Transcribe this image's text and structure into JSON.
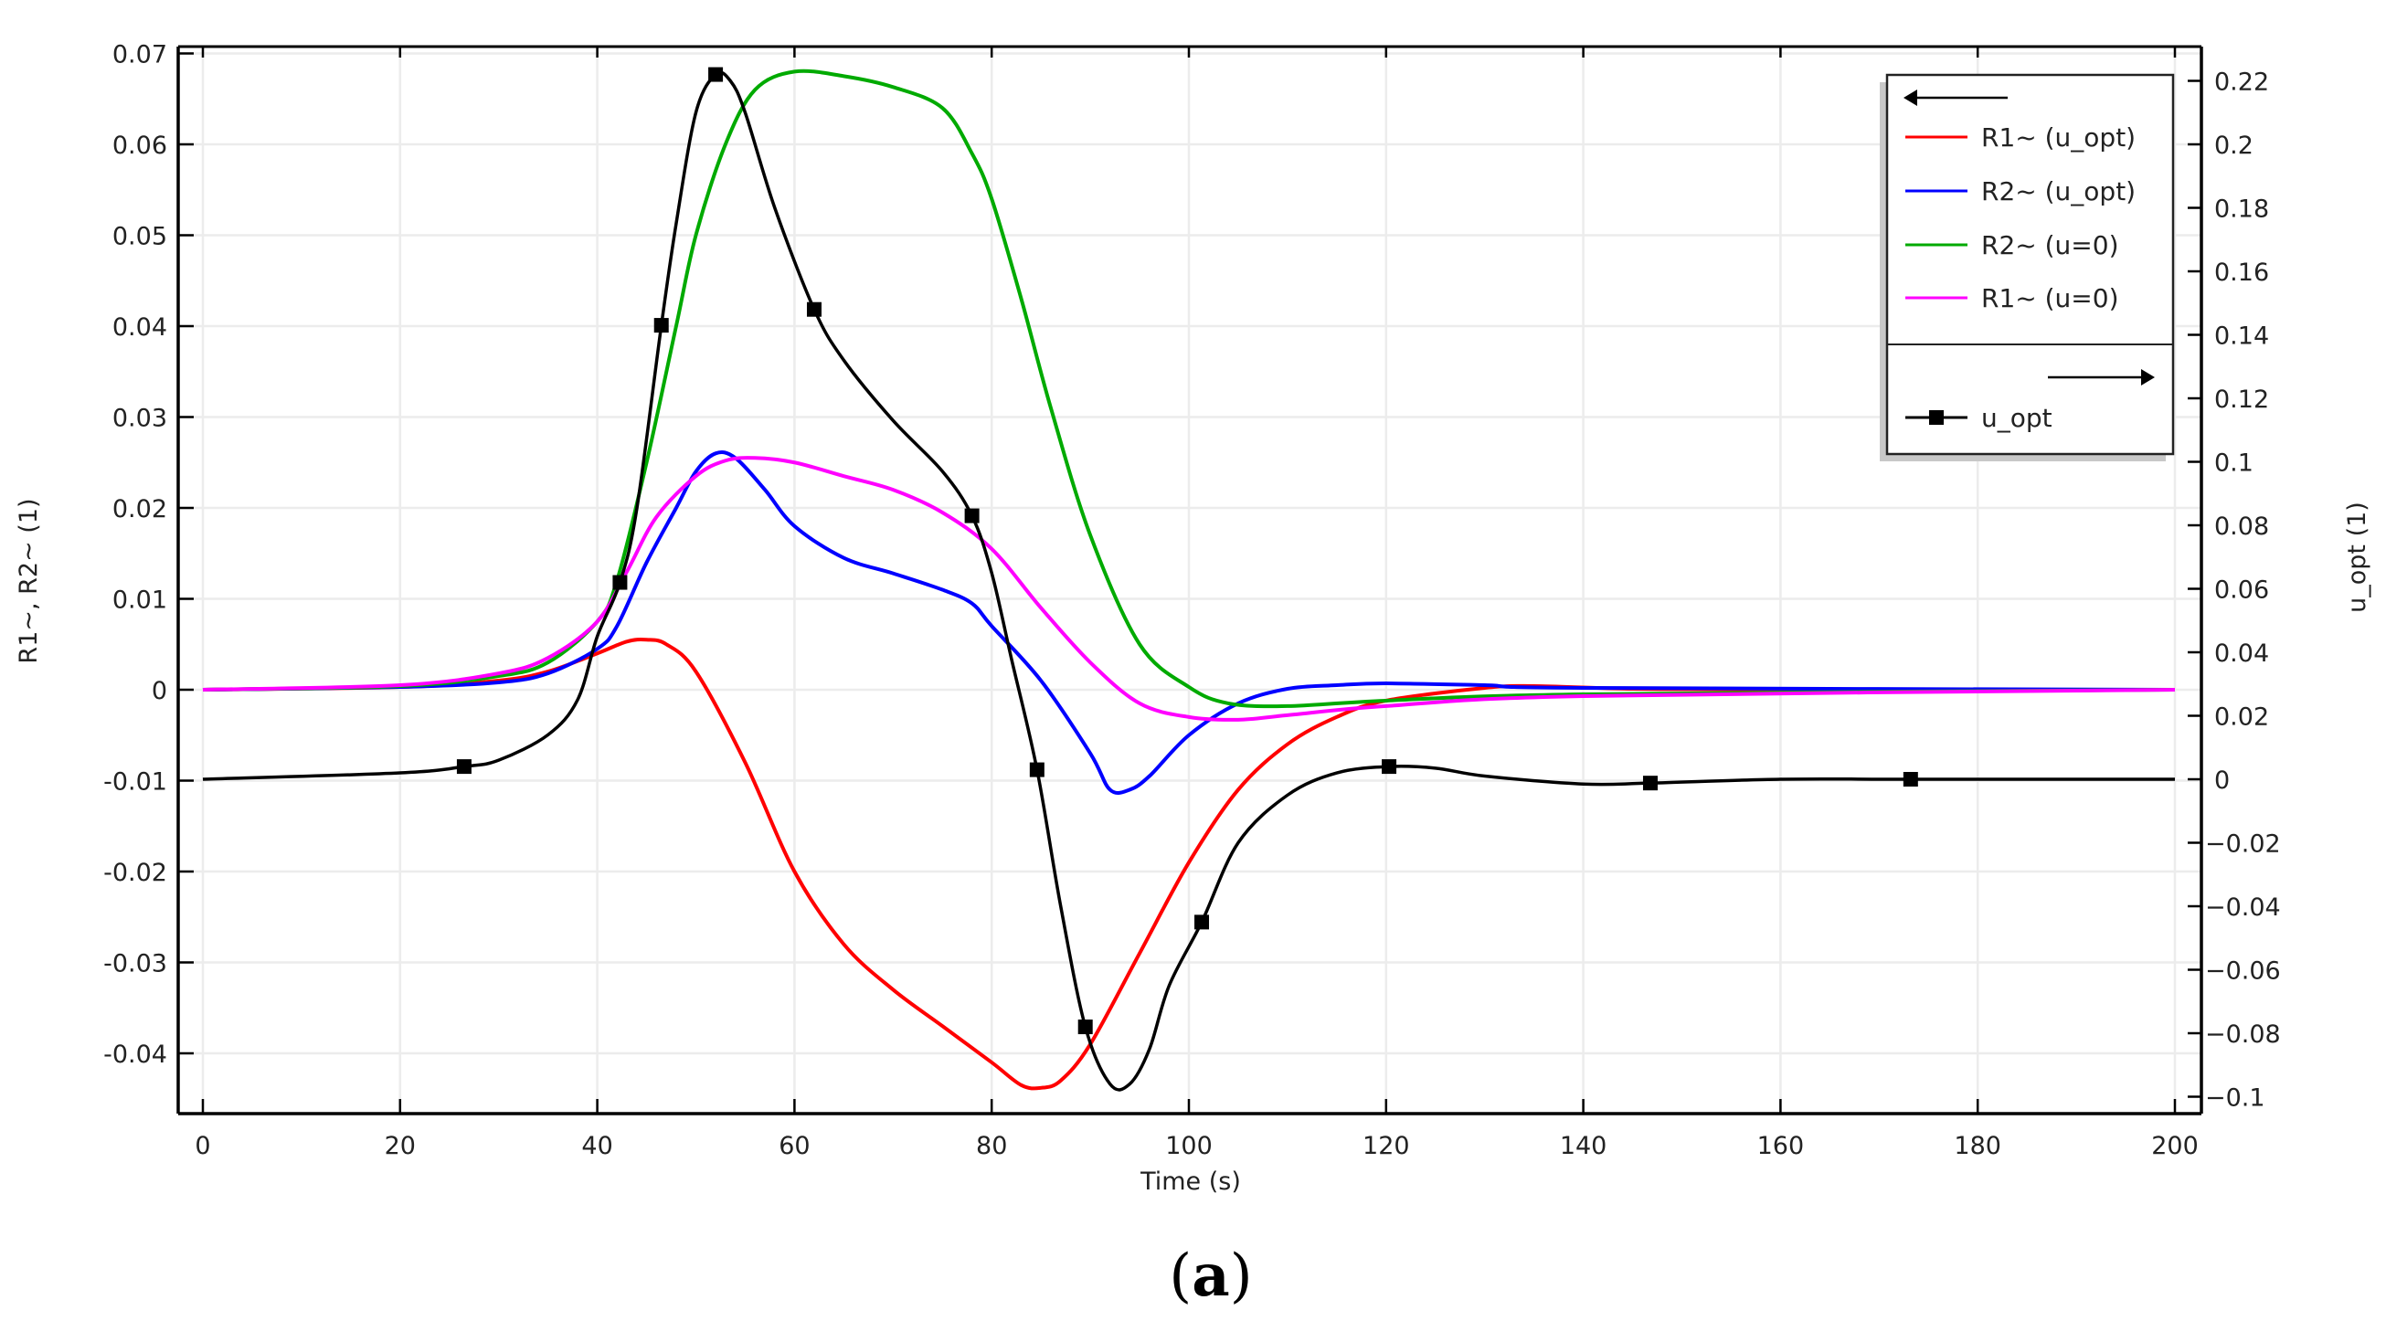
{
  "figure": {
    "caption_open": "(",
    "caption_letter": "a",
    "caption_close": ")"
  },
  "colors": {
    "r1_uopt": "#ff0000",
    "r2_uopt": "#0000ff",
    "r2_u0": "#00aa00",
    "r1_u0": "#ff00ff",
    "u_opt": "#000000",
    "grid": "#ececec",
    "axis": "#000000"
  },
  "chart_data": {
    "type": "line",
    "title": "",
    "xlabel": "Time (s)",
    "ylabel": "R1~, R2~ (1)",
    "y2label": "u_opt (1)",
    "xlim": [
      0,
      200
    ],
    "ylim": [
      -0.0466,
      0.0705
    ],
    "y2lim": [
      -0.1056,
      0.2315
    ],
    "x_ticks": [
      0,
      20,
      40,
      60,
      80,
      100,
      120,
      140,
      160,
      180,
      200
    ],
    "x_tick_labels": [
      "0",
      "20",
      "40",
      "60",
      "80",
      "100",
      "120",
      "140",
      "160",
      "180",
      "200"
    ],
    "y_ticks": [
      0.07,
      0.06,
      0.05,
      0.04,
      0.03,
      0.02,
      0.01,
      0,
      -0.01,
      -0.02,
      -0.03,
      -0.04
    ],
    "y_tick_labels": [
      "0.07",
      "0.06",
      "0.05",
      "0.04",
      "0.03",
      "0.02",
      "0.01",
      "0",
      "-0.01",
      "-0.02",
      "-0.03",
      "-0.04"
    ],
    "y2_ticks": [
      0.22,
      0.2,
      0.18,
      0.16,
      0.14,
      0.12,
      0.1,
      0.08,
      0.06,
      0.04,
      0.02,
      0,
      -0.02,
      -0.04,
      -0.06,
      -0.08,
      -0.1
    ],
    "y2_tick_labels": [
      "0.22",
      "0.2",
      "0.18",
      "0.16",
      "0.14",
      "0.12",
      "0.1",
      "0.08",
      "0.06",
      "0.04",
      "0.02",
      "0",
      "−0.02",
      "−0.04",
      "−0.06",
      "−0.08",
      "−0.1"
    ],
    "grid": true,
    "legend_position": "upper right",
    "legend": {
      "left_axis_group": [
        "R1~ (u_opt)",
        "R2~ (u_opt)",
        "R2~ (u=0)",
        "R1~ (u=0)"
      ],
      "right_axis_group": [
        "u_opt"
      ]
    },
    "series": [
      {
        "name": "R1~ (u_opt)",
        "axis": "left",
        "color": "#ff0000",
        "x": [
          0,
          20,
          30,
          35,
          40,
          43,
          45,
          47,
          50,
          55,
          60,
          65,
          70,
          75,
          80,
          83,
          85,
          87,
          90,
          95,
          100,
          105,
          110,
          115,
          120,
          130,
          135,
          145,
          160,
          200
        ],
        "y": [
          0,
          0.0003,
          0.001,
          0.002,
          0.004,
          0.0053,
          0.0055,
          0.005,
          0.002,
          -0.008,
          -0.02,
          -0.028,
          -0.033,
          -0.037,
          -0.041,
          -0.0435,
          -0.0438,
          -0.043,
          -0.039,
          -0.029,
          -0.019,
          -0.011,
          -0.006,
          -0.003,
          -0.0012,
          0.0002,
          0.0004,
          0.0001,
          0,
          0
        ]
      },
      {
        "name": "R2~ (u_opt)",
        "axis": "left",
        "color": "#0000ff",
        "x": [
          0,
          20,
          30,
          35,
          40,
          42,
          45,
          48,
          50,
          52,
          54,
          57,
          60,
          65,
          70,
          75,
          78,
          80,
          85,
          90,
          92,
          94,
          96,
          100,
          105,
          110,
          115,
          120,
          130,
          140,
          200
        ],
        "y": [
          0,
          0.0003,
          0.0008,
          0.0018,
          0.0045,
          0.007,
          0.014,
          0.02,
          0.024,
          0.026,
          0.0255,
          0.022,
          0.018,
          0.0145,
          0.0128,
          0.011,
          0.0095,
          0.007,
          0.001,
          -0.007,
          -0.011,
          -0.011,
          -0.0095,
          -0.005,
          -0.0015,
          0.0001,
          0.0005,
          0.0007,
          0.0005,
          0.0002,
          0
        ]
      },
      {
        "name": "R2~ (u=0)",
        "axis": "left",
        "color": "#00aa00",
        "x": [
          0,
          20,
          30,
          35,
          40,
          42,
          45,
          48,
          50,
          53,
          56,
          60,
          65,
          70,
          75,
          78,
          80,
          83,
          86,
          90,
          95,
          100,
          104,
          110,
          120,
          140,
          200
        ],
        "y": [
          0,
          0.0004,
          0.0015,
          0.003,
          0.0075,
          0.012,
          0.025,
          0.04,
          0.05,
          0.06,
          0.066,
          0.068,
          0.0675,
          0.0663,
          0.064,
          0.059,
          0.054,
          0.043,
          0.031,
          0.017,
          0.005,
          0.0003,
          -0.0015,
          -0.0018,
          -0.0012,
          -0.0005,
          0
        ]
      },
      {
        "name": "R1~ (u=0)",
        "axis": "left",
        "color": "#ff00ff",
        "x": [
          0,
          20,
          30,
          35,
          40,
          43,
          46,
          50,
          53,
          56,
          60,
          65,
          70,
          75,
          80,
          85,
          90,
          95,
          100,
          105,
          110,
          120,
          140,
          200
        ],
        "y": [
          0,
          0.0005,
          0.0018,
          0.0035,
          0.0075,
          0.013,
          0.019,
          0.0235,
          0.0252,
          0.0255,
          0.025,
          0.0235,
          0.022,
          0.0195,
          0.0155,
          0.009,
          0.003,
          -0.0015,
          -0.003,
          -0.0033,
          -0.0028,
          -0.0018,
          -0.0007,
          0
        ]
      },
      {
        "name": "u_opt",
        "axis": "right",
        "color": "#000000",
        "marker": "square",
        "x": [
          0,
          20,
          26.5,
          30,
          35,
          38,
          40,
          42.3,
          44,
          46.5,
          48,
          50,
          52,
          53.5,
          55,
          58,
          62,
          65,
          70,
          75,
          78,
          80,
          82,
          84.6,
          87,
          89.5,
          92,
          94,
          96,
          98,
          101.3,
          105,
          110,
          115,
          120.3,
          125,
          130,
          140,
          146.8,
          160,
          173.2,
          200
        ],
        "y": [
          0,
          0.002,
          0.004,
          0.006,
          0.014,
          0.025,
          0.045,
          0.062,
          0.085,
          0.143,
          0.175,
          0.21,
          0.222,
          0.22,
          0.21,
          0.18,
          0.148,
          0.132,
          0.113,
          0.097,
          0.083,
          0.065,
          0.038,
          0.003,
          -0.04,
          -0.078,
          -0.096,
          -0.096,
          -0.085,
          -0.065,
          -0.045,
          -0.02,
          -0.005,
          0.002,
          0.004,
          0.0035,
          0.001,
          -0.0015,
          -0.0012,
          0,
          0,
          0
        ],
        "marker_x": [
          26.5,
          42.3,
          46.5,
          52,
          62,
          78,
          84.6,
          89.5,
          101.3,
          120.3,
          146.8,
          173.2
        ]
      }
    ]
  }
}
